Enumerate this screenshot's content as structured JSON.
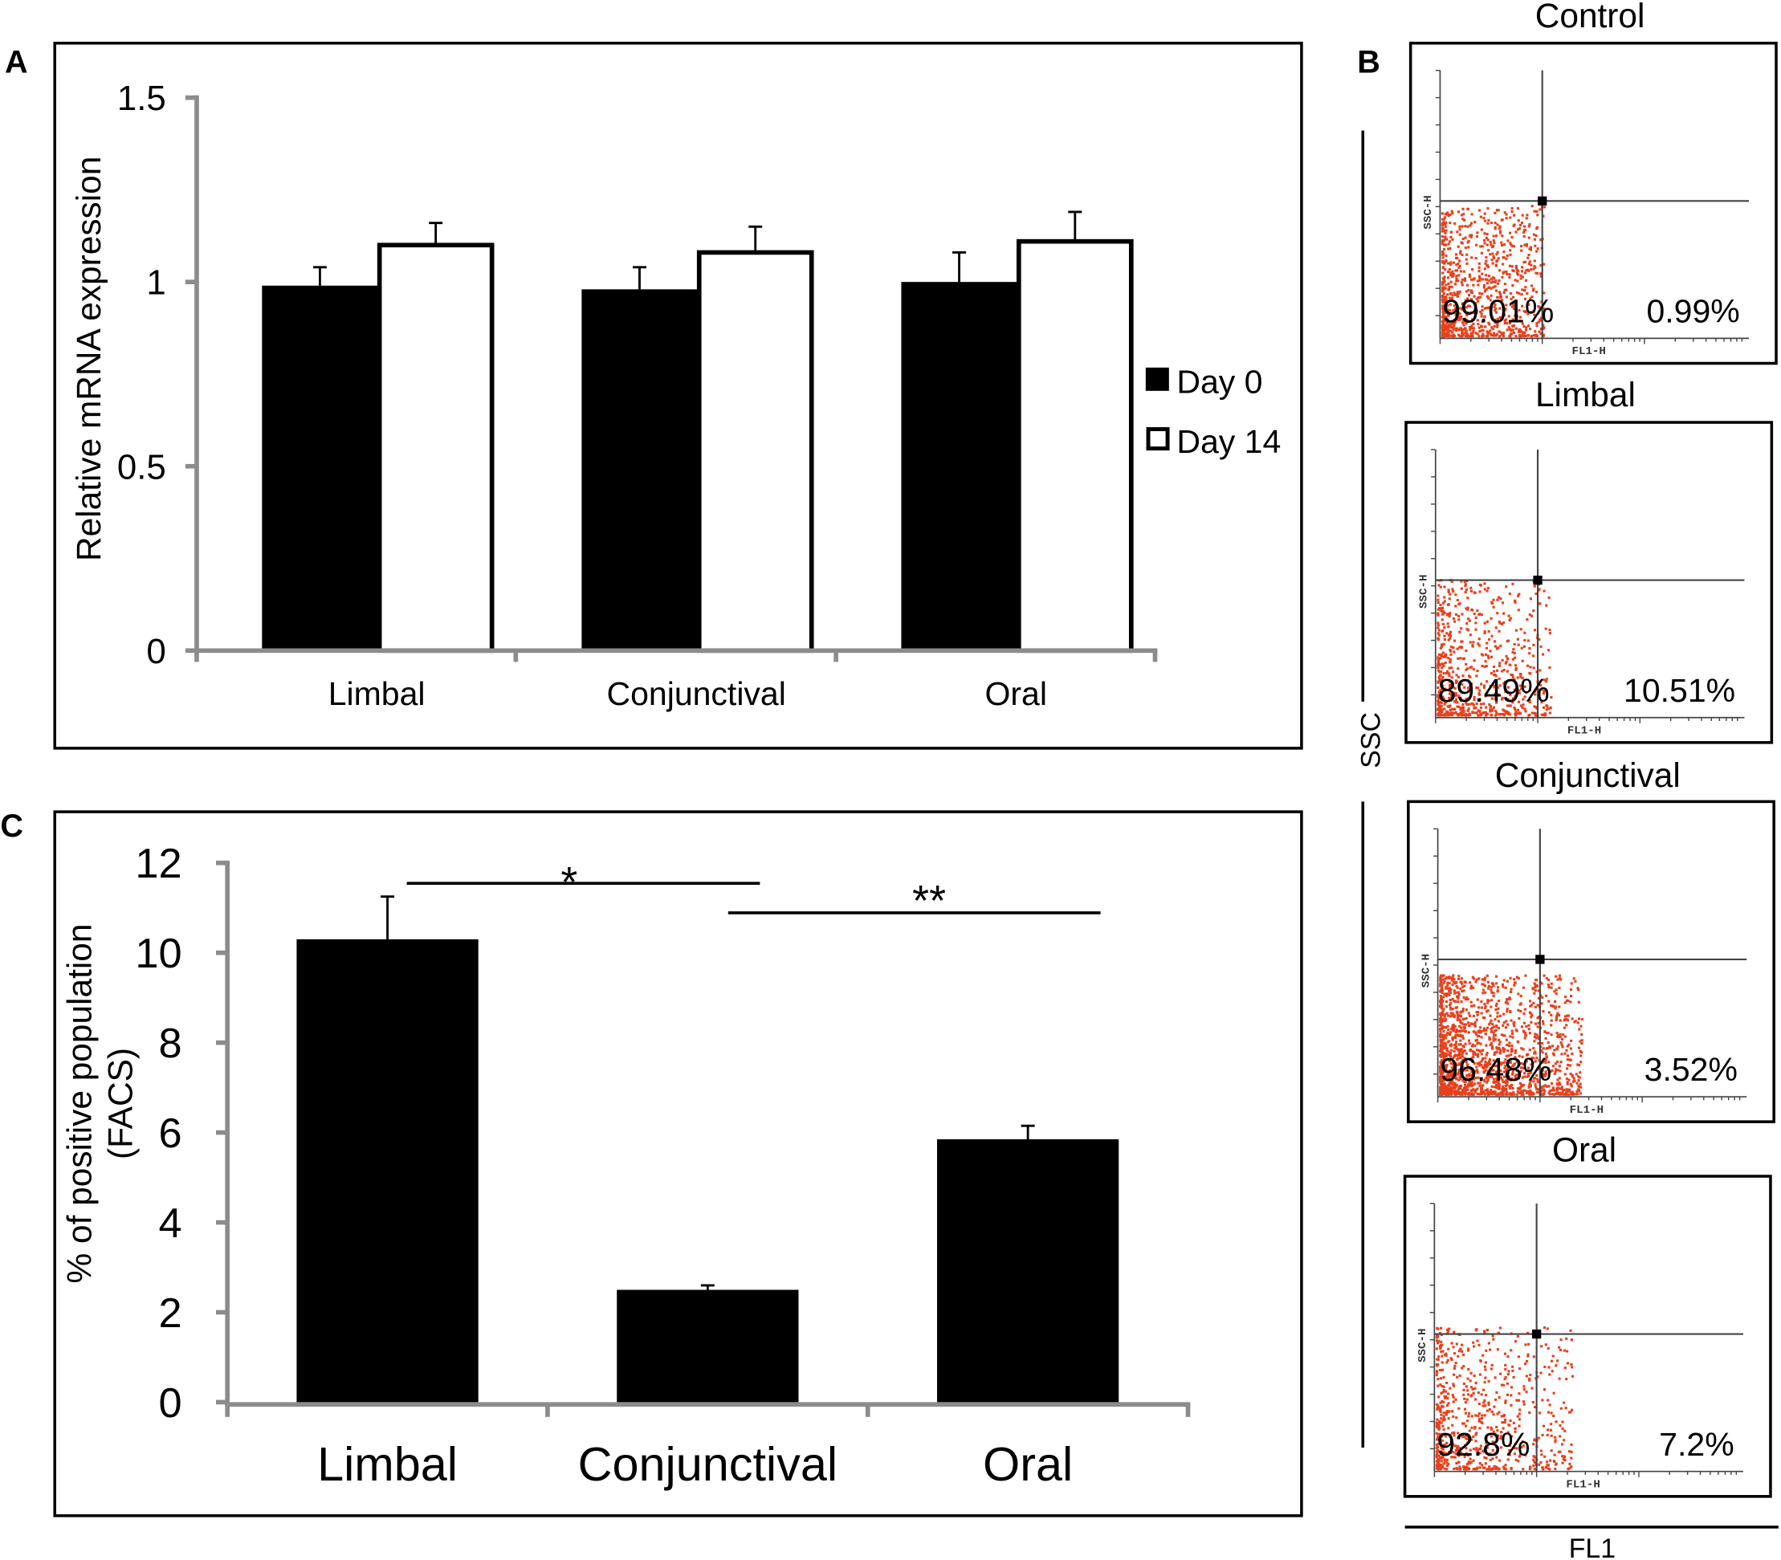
{
  "panel_labels": {
    "a": "A",
    "b": "B",
    "c": "C"
  },
  "chart_data": [
    {
      "panel": "A",
      "type": "bar",
      "ylabel": "Relative mRNA expression",
      "ylim": [
        0,
        1.5
      ],
      "yticks": [
        "0",
        "0.5",
        "1",
        "1.5"
      ],
      "categories": [
        "Limbal",
        "Conjunctival",
        "Oral"
      ],
      "legend_placement": "right",
      "series": [
        {
          "name": "Day 0",
          "color": "#000000",
          "values": [
            0.99,
            0.98,
            1.0
          ],
          "error": [
            0.05,
            0.06,
            0.08
          ]
        },
        {
          "name": "Day 14",
          "color": "#ffffff",
          "values": [
            1.1,
            1.08,
            1.11
          ],
          "error": [
            0.06,
            0.07,
            0.08
          ]
        }
      ]
    },
    {
      "panel": "C",
      "type": "bar",
      "ylabel_lines": [
        "% of positive population",
        "(FACS)"
      ],
      "ylim": [
        0,
        12
      ],
      "yticks": [
        "0",
        "2",
        "4",
        "6",
        "8",
        "10",
        "12"
      ],
      "categories": [
        "Limbal",
        "Conjunctival",
        "Oral"
      ],
      "values": [
        10.3,
        2.5,
        5.85
      ],
      "error": [
        0.95,
        0.1,
        0.3
      ],
      "color": "#000000",
      "significance": [
        {
          "from": "Limbal",
          "to": "Conjunctival",
          "label": "*"
        },
        {
          "from": "Conjunctival",
          "to": "Oral",
          "label": "**"
        }
      ]
    },
    {
      "panel": "B",
      "type": "scatter",
      "xlabel": "FL1",
      "ylabel": "SSC",
      "plot_axis_x": "FL1-H",
      "plot_axis_y": "SSC-H",
      "dot_color": "#e8401c",
      "plots": [
        {
          "title": "Control",
          "left_pct": "99.01%",
          "right_pct": "0.99%"
        },
        {
          "title": "Limbal",
          "left_pct": "89.49%",
          "right_pct": "10.51%"
        },
        {
          "title": "Conjunctival",
          "left_pct": "96.48%",
          "right_pct": "3.52%"
        },
        {
          "title": "Oral",
          "left_pct": "92.8%",
          "right_pct": "7.2%"
        }
      ]
    }
  ]
}
